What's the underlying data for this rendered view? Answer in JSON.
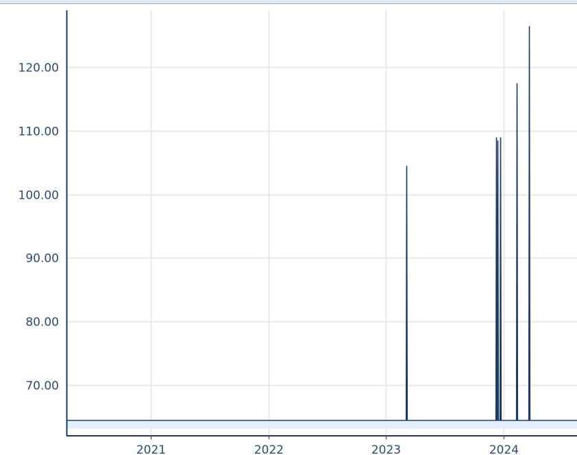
{
  "chart_data": {
    "type": "line",
    "title": "",
    "xlabel": "",
    "ylabel": "",
    "x_ticks": [
      "2021",
      "2022",
      "2023",
      "2024"
    ],
    "y_ticks": [
      "70.00",
      "80.00",
      "90.00",
      "100.00",
      "110.00",
      "120.00"
    ],
    "xlim": [
      "2020-04-15",
      "2024-08-15"
    ],
    "ylim": [
      62.0,
      129.0
    ],
    "grid": true,
    "baseline": 64.5,
    "series": [
      {
        "color": "#1c3a63",
        "spikes": [
          {
            "date": "2023-03-05",
            "value": 104.5
          },
          {
            "date": "2023-12-08",
            "value": 109.0
          },
          {
            "date": "2023-12-12",
            "value": 108.5
          },
          {
            "date": "2023-12-20",
            "value": 109.0
          },
          {
            "date": "2024-02-10",
            "value": 117.5
          },
          {
            "date": "2024-03-20",
            "value": 126.5
          }
        ]
      }
    ],
    "colors": {
      "axis": "#1c3a63",
      "grid": "#e3e3e3",
      "band_fill": "#e4f0fb",
      "tick_text": "#2d4a73"
    }
  }
}
